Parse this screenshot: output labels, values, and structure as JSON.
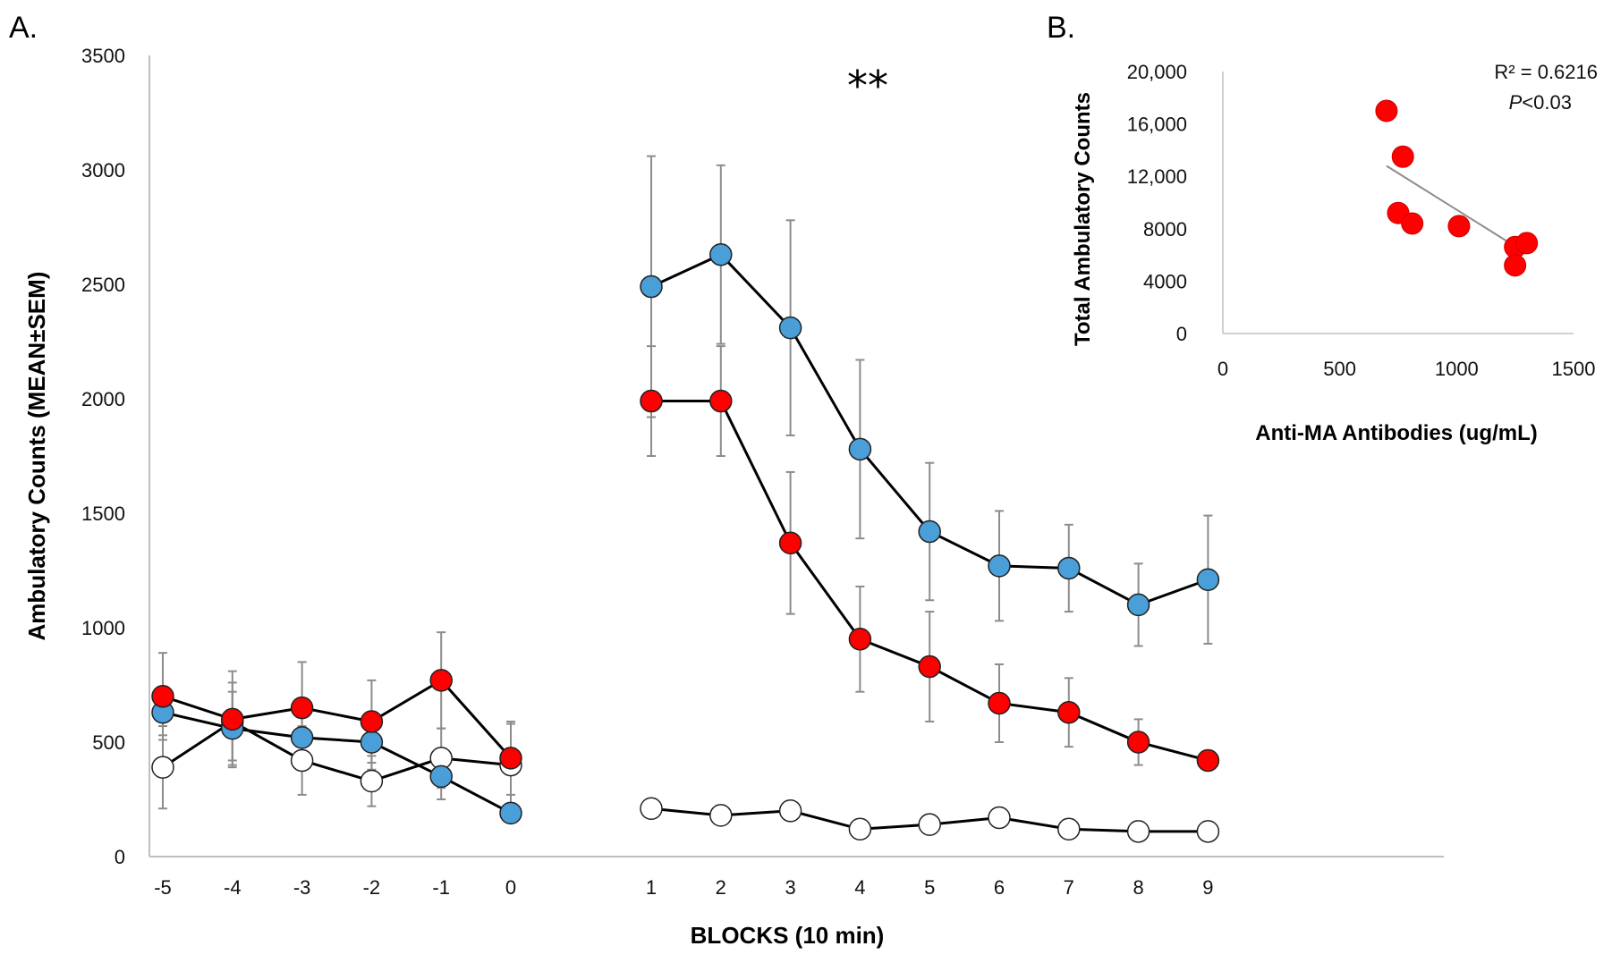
{
  "chart_data": [
    {
      "type": "line",
      "panel_label": "A.",
      "xlabel": "BLOCKS (10 min)",
      "ylabel": "Ambulatory Counts (MEAN±SEM)",
      "ylim": [
        0,
        3500
      ],
      "yticks": [
        "0",
        "500",
        "1000",
        "1500",
        "2000",
        "2500",
        "3000",
        "3500"
      ],
      "categories": [
        "-5",
        "-4",
        "-3",
        "-2",
        "-1",
        "0",
        "1",
        "2",
        "3",
        "4",
        "5",
        "6",
        "7",
        "8",
        "9"
      ],
      "significance": "**",
      "series": [
        {
          "name": "blue",
          "color": "#4a9fd8",
          "segments": [
            {
              "x": [
                "-5",
                "-4",
                "-3",
                "-2",
                "-1",
                "0"
              ],
              "values": [
                630,
                560,
                520,
                500,
                350,
                190
              ],
              "err": [
                100,
                160,
                120,
                120,
                100,
                40
              ]
            },
            {
              "x": [
                "1",
                "2",
                "3",
                "4",
                "5",
                "6",
                "7",
                "8",
                "9"
              ],
              "values": [
                2490,
                2630,
                2310,
                1780,
                1420,
                1270,
                1260,
                1100,
                1210
              ],
              "err": [
                570,
                390,
                470,
                390,
                300,
                240,
                190,
                180,
                280
              ]
            }
          ]
        },
        {
          "name": "red",
          "color": "#ff0000",
          "segments": [
            {
              "x": [
                "-5",
                "-4",
                "-3",
                "-2",
                "-1",
                "0"
              ],
              "values": [
                700,
                600,
                650,
                590,
                770,
                430
              ],
              "err": [
                190,
                210,
                200,
                180,
                210,
                160
              ]
            },
            {
              "x": [
                "1",
                "2",
                "3",
                "4",
                "5",
                "6",
                "7",
                "8",
                "9"
              ],
              "values": [
                1990,
                1990,
                1370,
                950,
                830,
                670,
                630,
                500,
                420
              ],
              "err": [
                240,
                240,
                310,
                230,
                240,
                170,
                150,
                100,
                0
              ]
            }
          ]
        },
        {
          "name": "white",
          "color": "#ffffff",
          "segments": [
            {
              "x": [
                "-5",
                "-4",
                "-3",
                "-2",
                "-1",
                "0"
              ],
              "values": [
                390,
                590,
                420,
                330,
                430,
                400
              ],
              "err": [
                180,
                170,
                150,
                110,
                130,
                180
              ]
            },
            {
              "x": [
                "1",
                "2",
                "3",
                "4",
                "5",
                "6",
                "7",
                "8",
                "9"
              ],
              "values": [
                210,
                180,
                200,
                120,
                140,
                170,
                120,
                110,
                110
              ],
              "err": [
                0,
                0,
                0,
                0,
                0,
                0,
                0,
                0,
                0
              ]
            }
          ]
        }
      ]
    },
    {
      "type": "scatter",
      "panel_label": "B.",
      "xlabel": "Anti-MA Antibodies (ug/mL)",
      "ylabel": "Total Ambulatory Counts",
      "xlim": [
        0,
        1500
      ],
      "ylim": [
        0,
        20000
      ],
      "xticks": [
        "0",
        "500",
        "1000",
        "1500"
      ],
      "yticks": [
        "0",
        "4000",
        "8000",
        "12,000",
        "16,000",
        "20,000"
      ],
      "r_squared": "R² = 0.6216",
      "p_value_symbol": "P",
      "p_value_text": "<0.03",
      "point_color": "#ff0000",
      "points": [
        {
          "x": 700,
          "y": 17000
        },
        {
          "x": 770,
          "y": 13500
        },
        {
          "x": 750,
          "y": 9200
        },
        {
          "x": 810,
          "y": 8400
        },
        {
          "x": 1010,
          "y": 8200
        },
        {
          "x": 1250,
          "y": 6600
        },
        {
          "x": 1300,
          "y": 6900
        },
        {
          "x": 1250,
          "y": 5200
        }
      ],
      "trendline": {
        "x": [
          700,
          1300
        ],
        "y": [
          12800,
          6100
        ]
      }
    }
  ]
}
